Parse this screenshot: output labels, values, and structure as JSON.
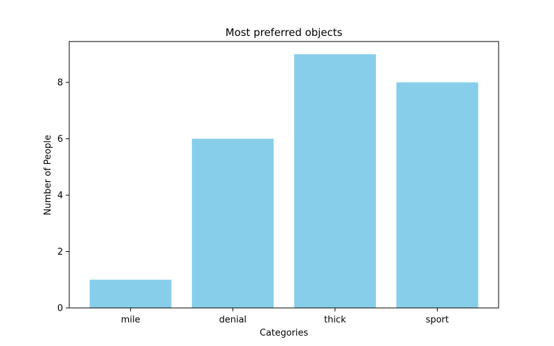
{
  "chart_data": {
    "type": "bar",
    "title": "Most preferred objects",
    "xlabel": "Categories",
    "ylabel": "Number of People",
    "categories": [
      "mile",
      "denial",
      "thick",
      "sport"
    ],
    "values": [
      1,
      6,
      9,
      8
    ],
    "ylim": [
      0,
      9.45
    ],
    "yticks": [
      0,
      2,
      4,
      6,
      8
    ],
    "bar_color": "#87ceeb",
    "grid": false,
    "legend": "none"
  }
}
